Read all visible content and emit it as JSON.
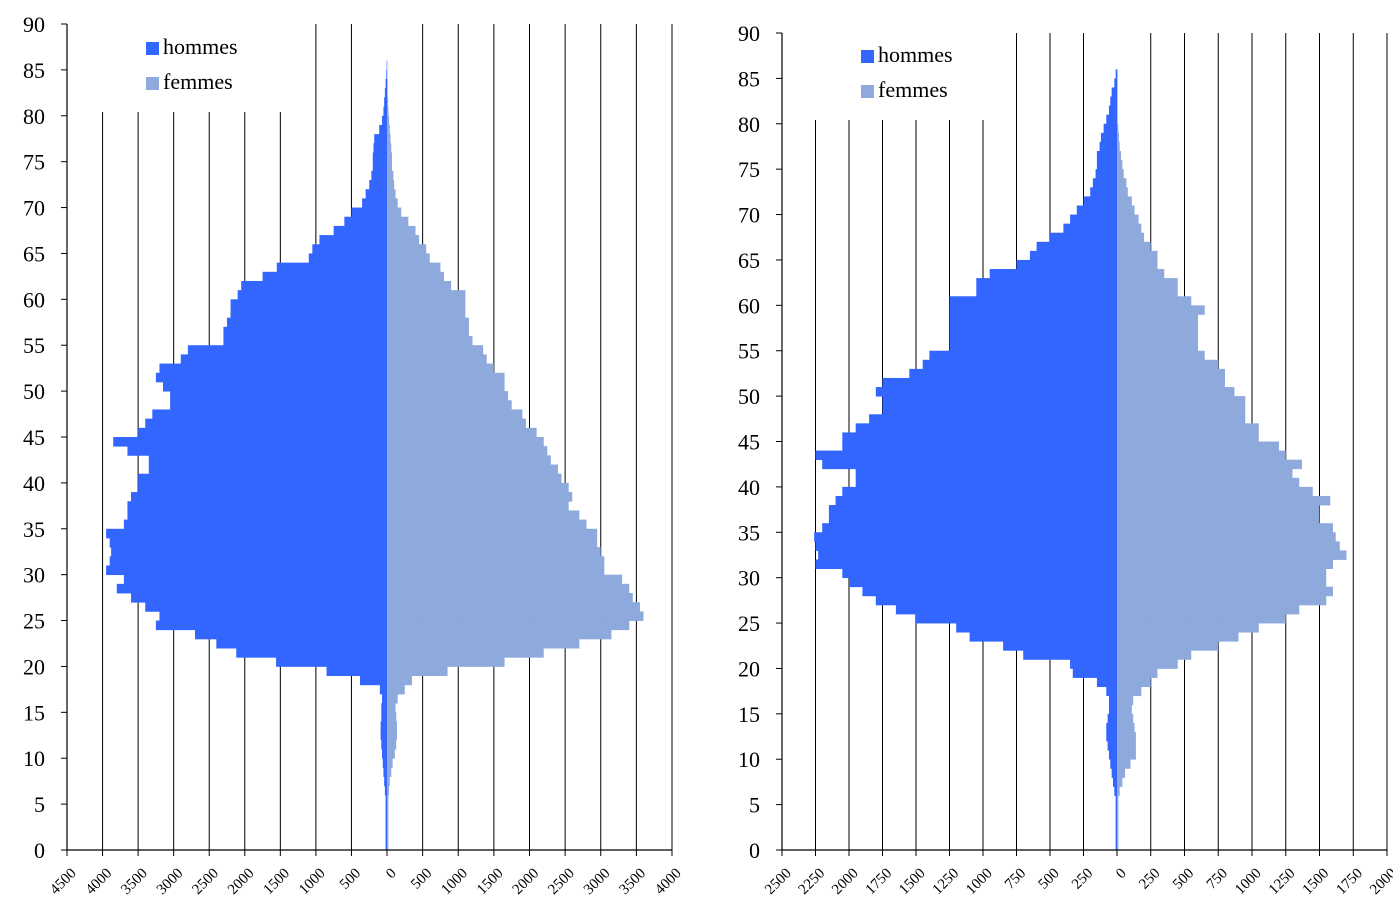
{
  "chart_data": [
    {
      "type": "bar",
      "orientation": "horizontal-population-pyramid",
      "y_axis": {
        "range": [
          0,
          90
        ],
        "ticks": [
          "0",
          "5",
          "10",
          "15",
          "20",
          "25",
          "30",
          "35",
          "40",
          "45",
          "50",
          "55",
          "60",
          "65",
          "70",
          "75",
          "80",
          "85",
          "90"
        ]
      },
      "x_axis": {
        "left_range": [
          0,
          4500
        ],
        "right_range": [
          0,
          4000
        ],
        "ticks_left": [
          "4500",
          "4000",
          "3500",
          "3000",
          "2500",
          "2000",
          "1500",
          "1000",
          "500",
          "0"
        ],
        "ticks_right": [
          "500",
          "1000",
          "1500",
          "2000",
          "2500",
          "3000",
          "3500",
          "4000"
        ]
      },
      "grid": "vertical",
      "legend_position": "top-left",
      "ages": [
        0,
        1,
        2,
        3,
        4,
        5,
        6,
        7,
        8,
        9,
        10,
        11,
        12,
        13,
        14,
        15,
        16,
        17,
        18,
        19,
        20,
        21,
        22,
        23,
        24,
        25,
        26,
        27,
        28,
        29,
        30,
        31,
        32,
        33,
        34,
        35,
        36,
        37,
        38,
        39,
        40,
        41,
        42,
        43,
        44,
        45,
        46,
        47,
        48,
        49,
        50,
        51,
        52,
        53,
        54,
        55,
        56,
        57,
        58,
        59,
        60,
        61,
        62,
        63,
        64,
        65,
        66,
        67,
        68,
        69,
        70,
        71,
        72,
        73,
        74,
        75,
        76,
        77,
        78,
        79,
        80,
        81,
        82,
        83,
        84,
        85
      ],
      "series": [
        {
          "name": "hommes",
          "color": "#3366ff",
          "side": "left",
          "values": [
            20,
            20,
            20,
            20,
            20,
            20,
            30,
            40,
            50,
            60,
            70,
            80,
            90,
            90,
            80,
            80,
            70,
            100,
            380,
            850,
            1560,
            2120,
            2400,
            2700,
            3250,
            3200,
            3400,
            3600,
            3800,
            3700,
            3950,
            3900,
            3880,
            3900,
            3950,
            3700,
            3650,
            3650,
            3600,
            3500,
            3500,
            3350,
            3350,
            3650,
            3850,
            3500,
            3400,
            3300,
            3050,
            3050,
            3150,
            3250,
            3200,
            2900,
            2800,
            2300,
            2300,
            2250,
            2200,
            2200,
            2100,
            2050,
            1750,
            1550,
            1100,
            1050,
            950,
            750,
            600,
            500,
            350,
            300,
            250,
            220,
            200,
            200,
            190,
            180,
            110,
            70,
            50,
            40,
            30,
            20,
            10,
            5
          ]
        },
        {
          "name": "femmes",
          "color": "#8eaadc",
          "side": "right",
          "values": [
            20,
            20,
            20,
            20,
            20,
            20,
            30,
            40,
            60,
            80,
            110,
            130,
            140,
            140,
            130,
            120,
            150,
            250,
            350,
            850,
            1650,
            2200,
            2700,
            3150,
            3400,
            3600,
            3550,
            3450,
            3400,
            3300,
            3050,
            3050,
            3000,
            2950,
            2950,
            2800,
            2700,
            2550,
            2600,
            2550,
            2450,
            2400,
            2300,
            2250,
            2200,
            2100,
            1950,
            1900,
            1750,
            1700,
            1650,
            1650,
            1500,
            1400,
            1350,
            1200,
            1150,
            1150,
            1100,
            1100,
            1100,
            900,
            800,
            750,
            600,
            550,
            450,
            400,
            300,
            200,
            150,
            120,
            100,
            90,
            70,
            70,
            60,
            50,
            40,
            30,
            20,
            15,
            10,
            10,
            5,
            5
          ]
        }
      ]
    },
    {
      "type": "bar",
      "orientation": "horizontal-population-pyramid",
      "y_axis": {
        "range": [
          0,
          90
        ],
        "ticks": [
          "0",
          "5",
          "10",
          "15",
          "20",
          "25",
          "30",
          "35",
          "40",
          "45",
          "50",
          "55",
          "60",
          "65",
          "70",
          "75",
          "80",
          "85",
          "90"
        ]
      },
      "x_axis": {
        "left_range": [
          0,
          2500
        ],
        "right_range": [
          0,
          2000
        ],
        "ticks_left": [
          "2500",
          "2250",
          "2000",
          "1750",
          "1500",
          "1250",
          "1000",
          "750",
          "500",
          "250",
          "0"
        ],
        "ticks_right": [
          "250",
          "500",
          "750",
          "1000",
          "1250",
          "1500",
          "1750",
          "2000"
        ]
      },
      "grid": "vertical",
      "legend_position": "top-left",
      "ages": [
        0,
        1,
        2,
        3,
        4,
        5,
        6,
        7,
        8,
        9,
        10,
        11,
        12,
        13,
        14,
        15,
        16,
        17,
        18,
        19,
        20,
        21,
        22,
        23,
        24,
        25,
        26,
        27,
        28,
        29,
        30,
        31,
        32,
        33,
        34,
        35,
        36,
        37,
        38,
        39,
        40,
        41,
        42,
        43,
        44,
        45,
        46,
        47,
        48,
        49,
        50,
        51,
        52,
        53,
        54,
        55,
        56,
        57,
        58,
        59,
        60,
        61,
        62,
        63,
        64,
        65,
        66,
        67,
        68,
        69,
        70,
        71,
        72,
        73,
        74,
        75,
        76,
        77,
        78,
        79,
        80,
        81,
        82,
        83,
        84,
        85
      ],
      "series": [
        {
          "name": "hommes",
          "color": "#3366ff",
          "side": "left",
          "values": [
            10,
            10,
            10,
            10,
            10,
            10,
            20,
            30,
            40,
            50,
            60,
            70,
            80,
            80,
            70,
            60,
            60,
            80,
            150,
            330,
            350,
            700,
            850,
            1100,
            1200,
            1500,
            1650,
            1800,
            1900,
            2000,
            2050,
            2250,
            2230,
            2250,
            2260,
            2200,
            2150,
            2150,
            2100,
            2050,
            1950,
            1950,
            2200,
            2250,
            2050,
            2050,
            1950,
            1850,
            1750,
            1750,
            1800,
            1750,
            1550,
            1450,
            1400,
            1250,
            1250,
            1250,
            1250,
            1250,
            1250,
            1050,
            1050,
            950,
            750,
            650,
            600,
            500,
            400,
            350,
            300,
            250,
            200,
            180,
            160,
            150,
            150,
            130,
            120,
            100,
            80,
            60,
            50,
            40,
            20,
            10
          ]
        },
        {
          "name": "femmes",
          "color": "#8eaadc",
          "side": "right",
          "values": [
            10,
            10,
            10,
            10,
            10,
            10,
            20,
            40,
            60,
            100,
            140,
            140,
            140,
            130,
            120,
            110,
            120,
            180,
            250,
            300,
            450,
            550,
            750,
            900,
            1050,
            1250,
            1350,
            1550,
            1600,
            1550,
            1550,
            1600,
            1700,
            1650,
            1620,
            1600,
            1500,
            1500,
            1580,
            1450,
            1350,
            1300,
            1370,
            1250,
            1200,
            1050,
            1050,
            950,
            950,
            950,
            870,
            800,
            800,
            750,
            650,
            600,
            600,
            600,
            600,
            650,
            550,
            450,
            450,
            350,
            300,
            300,
            250,
            200,
            180,
            160,
            130,
            110,
            80,
            70,
            50,
            40,
            30,
            20,
            15,
            10,
            5,
            5,
            5,
            5,
            5,
            5
          ]
        }
      ]
    }
  ],
  "legend": {
    "hommes": "hommes",
    "femmes": "femmes"
  }
}
